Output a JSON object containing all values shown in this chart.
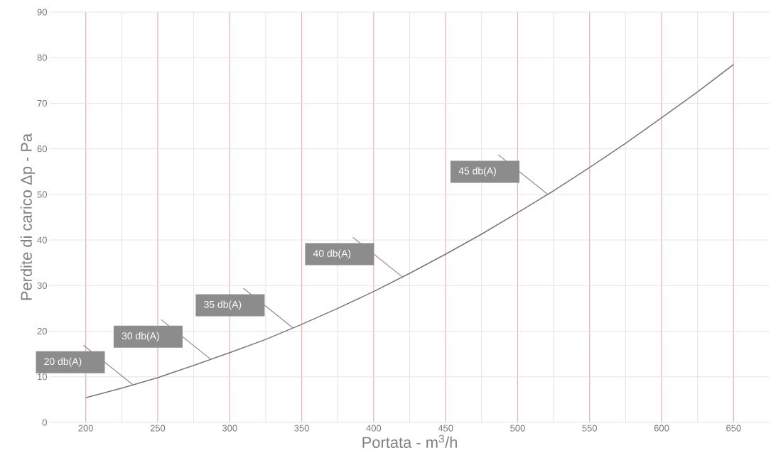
{
  "chart_data": {
    "type": "line",
    "xlabel": "Portata - m$^{3}$/h",
    "ylabel": "Perdite di carico Δp  - Pa",
    "x": [
      200,
      225,
      250,
      275,
      300,
      325,
      350,
      375,
      400,
      425,
      450,
      475,
      500,
      525,
      550,
      575,
      600,
      625,
      650
    ],
    "series": [
      {
        "color": "#777777",
        "values": [
          5.4,
          7.5,
          9.8,
          12.5,
          15.3,
          18.2,
          21.5,
          25.0,
          28.7,
          32.7,
          36.9,
          41.3,
          46.0,
          50.8,
          55.9,
          61.2,
          66.8,
          72.5,
          78.5
        ]
      }
    ],
    "xlim": [
      175,
      675
    ],
    "ylim": [
      0,
      90
    ],
    "xticks": [
      200,
      250,
      300,
      350,
      400,
      450,
      500,
      550,
      600,
      650
    ],
    "yticks": [
      0,
      10,
      20,
      30,
      40,
      50,
      60,
      70,
      80,
      90
    ],
    "grid": true,
    "annotations": [
      {
        "text": "20 db(A)",
        "x": 233,
        "y": 8.2
      },
      {
        "text": "30 db(A)",
        "x": 287,
        "y": 13.8
      },
      {
        "text": "35 db(A)",
        "x": 344,
        "y": 20.7
      },
      {
        "text": "40 db(A)",
        "x": 420,
        "y": 31.9
      },
      {
        "text": "45 db(A)",
        "x": 521,
        "y": 50.0
      }
    ]
  }
}
